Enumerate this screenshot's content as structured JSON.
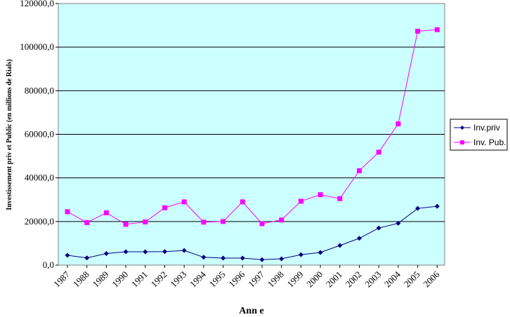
{
  "chart_data": {
    "type": "line",
    "title": "",
    "xlabel": "Ann e",
    "ylabel": "Investissement priv et Public (en millions de Rials)",
    "categories": [
      "1987",
      "1988",
      "1989",
      "1990",
      "1991",
      "1992",
      "1993",
      "1994",
      "1995",
      "1996",
      "1997",
      "1998",
      "1999",
      "2000",
      "2001",
      "2002",
      "2003",
      "2004",
      "2005",
      "2006"
    ],
    "ylim": [
      0,
      120000
    ],
    "yticks": [
      "0,0",
      "20000,0",
      "40000,0",
      "60000,0",
      "80000,0",
      "100000,0",
      "120000,0"
    ],
    "grid": true,
    "legend_position": "right",
    "plot_background": "#ccffff",
    "series": [
      {
        "name": "Inv.priv",
        "color": "#000080",
        "marker": "diamond",
        "values": [
          4500,
          3300,
          5300,
          6100,
          6100,
          6200,
          6700,
          3600,
          3200,
          3200,
          2500,
          2900,
          4800,
          5800,
          9000,
          12300,
          17000,
          19200,
          26000,
          27000
        ]
      },
      {
        "name": "Inv. Pub.",
        "color": "#ff00ff",
        "marker": "square",
        "values": [
          24500,
          19500,
          24000,
          18700,
          19800,
          26300,
          29000,
          19700,
          20000,
          29000,
          19000,
          20700,
          29300,
          32300,
          30500,
          43300,
          51800,
          64800,
          107300,
          108000
        ]
      }
    ]
  }
}
